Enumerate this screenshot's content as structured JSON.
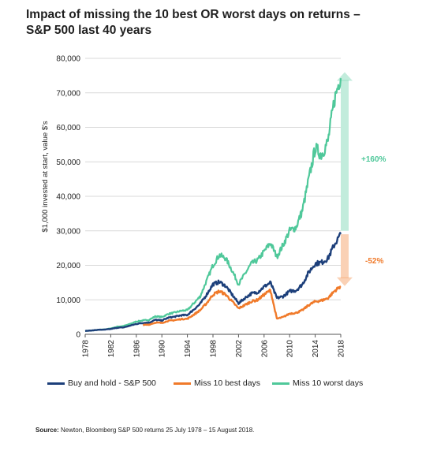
{
  "title_line1": "Impact of missing the 10 best OR worst days on returns –",
  "title_line2": "S&P 500 last 40 years",
  "source_label": "Source:",
  "source_text": " Newton, Bloomberg S&P 500 returns 25 July 1978 – 15 August 2018.",
  "chart_data": {
    "type": "line",
    "ylabel": "$1,000 invested at start, value $'s",
    "xlabel": "",
    "ylim": [
      0,
      80000
    ],
    "xlim": [
      1978,
      2018
    ],
    "yticks": [
      0,
      10000,
      20000,
      30000,
      40000,
      50000,
      60000,
      70000,
      80000
    ],
    "ytick_labels": [
      "0",
      "10,000",
      "20,000",
      "30,000",
      "40,000",
      "50,000",
      "60,000",
      "70,000",
      "80,000"
    ],
    "xtick_labels": [
      "1978",
      "1982",
      "1986",
      "1990",
      "1994",
      "1998",
      "2002",
      "2006",
      "2010",
      "2014",
      "2018"
    ],
    "grid": "horizontal",
    "legend_position": "bottom",
    "x": [
      1978,
      1979,
      1980,
      1981,
      1982,
      1983,
      1984,
      1985,
      1986,
      1987,
      1988,
      1989,
      1990,
      1991,
      1992,
      1993,
      1994,
      1995,
      1996,
      1997,
      1998,
      1999,
      2000,
      2001,
      2002,
      2003,
      2004,
      2005,
      2006,
      2007,
      2008,
      2009,
      2010,
      2011,
      2012,
      2013,
      2014,
      2015,
      2016,
      2017,
      2018
    ],
    "series": [
      {
        "name": "Buy and hold - S&P 500",
        "color": "#1c3f7a",
        "values": [
          1000,
          1100,
          1300,
          1350,
          1550,
          1900,
          2000,
          2500,
          3000,
          3300,
          3400,
          4200,
          4000,
          4800,
          5100,
          5500,
          5600,
          7200,
          8800,
          11500,
          14500,
          15200,
          14000,
          11500,
          9000,
          10500,
          11800,
          12200,
          13800,
          15000,
          10500,
          11000,
          12500,
          12700,
          14500,
          18000,
          20500,
          20800,
          22000,
          26000,
          29000
        ]
      },
      {
        "name": "Miss 10 best days",
        "color": "#f07a2a",
        "values": [
          1000,
          1050,
          1200,
          1250,
          1400,
          1700,
          1800,
          2150,
          2500,
          2700,
          2800,
          3400,
          3300,
          3900,
          4100,
          4400,
          4500,
          5700,
          7000,
          9000,
          11500,
          12500,
          11500,
          9500,
          7500,
          8500,
          9500,
          10000,
          11500,
          12800,
          4500,
          5000,
          6000,
          6200,
          7000,
          8500,
          9500,
          9800,
          10500,
          12500,
          14000
        ]
      },
      {
        "name": "Miss 10 worst days",
        "color": "#4fc89a",
        "values": [
          1000,
          1100,
          1300,
          1400,
          1700,
          2200,
          2400,
          3000,
          3700,
          4000,
          4200,
          5200,
          5000,
          5900,
          6300,
          6800,
          7000,
          9000,
          11000,
          15500,
          20000,
          23000,
          22000,
          18500,
          14500,
          17500,
          20500,
          21500,
          24000,
          26500,
          22500,
          26000,
          30000,
          31000,
          36000,
          45000,
          54000,
          52000,
          56000,
          68000,
          75000
        ]
      }
    ],
    "annotations": [
      {
        "text": "+160%",
        "color": "#4fc89a",
        "from": 30000,
        "to": 76000
      },
      {
        "text": "-52%",
        "color": "#f07a2a",
        "from": 29000,
        "to": 14000
      }
    ]
  }
}
